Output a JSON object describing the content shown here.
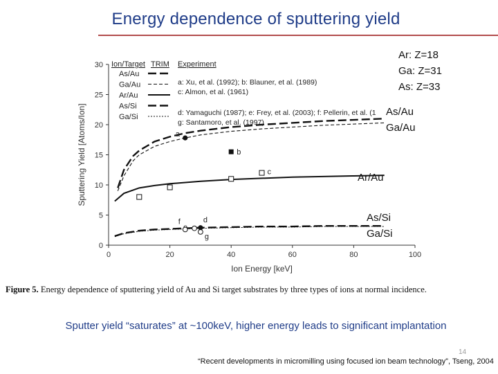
{
  "slide": {
    "title": "Energy dependence of sputtering yield",
    "labels_right": {
      "ions": "Ar: Z=18\nGa: Z=31\nAs: Z=33",
      "as_ga_au": "As/Au\nGa/Au",
      "ar_au": "Ar/Au",
      "as_ga_si": "As/Si\nGa/Si"
    },
    "caption_bold": "Figure 5.",
    "caption_text": " Energy dependence of sputtering yield of Au and Si target substrates by three types of ions at normal incidence.",
    "note": "Sputter yield “saturates” at ~100keV, higher energy leads to significant implantation",
    "reference": "“Recent developments in micromilling using focused ion beam technology”, Tseng, 2004",
    "page_number": "14"
  },
  "chart_data": {
    "type": "line",
    "xlabel": "Ion Energy [keV]",
    "ylabel": "Sputtering Yield [Atoms/Ion]",
    "xlim": [
      0,
      100
    ],
    "ylim": [
      0,
      30
    ],
    "xticks": [
      0,
      20,
      40,
      60,
      80,
      100
    ],
    "yticks": [
      0,
      5,
      10,
      15,
      20,
      25,
      30
    ],
    "legend_headers": [
      "Ion/Target",
      "TRIM",
      "Experiment"
    ],
    "series": [
      {
        "name": "As/Au",
        "style": "long-dash",
        "x": [
          3,
          5,
          8,
          10,
          15,
          20,
          25,
          30,
          40,
          50,
          60,
          70,
          80,
          90
        ],
        "y": [
          9.5,
          12.5,
          14.8,
          15.7,
          17.2,
          18,
          18.6,
          19,
          19.6,
          20,
          20.3,
          20.6,
          20.8,
          21.0
        ]
      },
      {
        "name": "Ga/Au",
        "style": "short-dash",
        "x": [
          3,
          5,
          8,
          10,
          15,
          20,
          25,
          30,
          40,
          50,
          60,
          70,
          80,
          90
        ],
        "y": [
          9.0,
          11.5,
          14.0,
          15.0,
          16.4,
          17.2,
          17.8,
          18.3,
          18.9,
          19.3,
          19.6,
          19.9,
          20.1,
          20.3
        ]
      },
      {
        "name": "Ar/Au",
        "style": "solid",
        "x": [
          2,
          5,
          10,
          15,
          20,
          30,
          40,
          50,
          60,
          70,
          80,
          90
        ],
        "y": [
          7.3,
          8.6,
          9.5,
          9.9,
          10.2,
          10.6,
          10.9,
          11.1,
          11.3,
          11.4,
          11.5,
          11.6
        ]
      },
      {
        "name": "As/Si",
        "style": "long-dash",
        "x": [
          2,
          5,
          10,
          15,
          20,
          30,
          40,
          50,
          60,
          70,
          80,
          90
        ],
        "y": [
          1.5,
          2.0,
          2.4,
          2.6,
          2.7,
          2.9,
          3.0,
          3.1,
          3.1,
          3.2,
          3.2,
          3.2
        ]
      },
      {
        "name": "Ga/Si",
        "style": "dotted",
        "x": [
          2,
          5,
          10,
          15,
          20,
          30,
          40,
          50,
          60,
          70,
          80,
          90
        ],
        "y": [
          1.4,
          1.9,
          2.3,
          2.5,
          2.6,
          2.8,
          2.9,
          3.0,
          3.0,
          3.1,
          3.1,
          3.1
        ]
      }
    ],
    "experiments": [
      {
        "label": "a: Xu, et al. (1992); b: Blauner, et al. (1989)"
      },
      {
        "label": "c: Almon, et al. (1961)"
      },
      {
        "label": "d: Yamaguchi (1987); e: Frey, et al. (2003); f: Pellerin, et al. (1"
      },
      {
        "label": "g: Santamoro, et al. (1997)"
      }
    ],
    "points": [
      {
        "label": "a",
        "x": 25,
        "y": 17.8,
        "marker": "filled-circle"
      },
      {
        "label": "b",
        "x": 40,
        "y": 15.5,
        "marker": "filled-square"
      },
      {
        "label": "c",
        "x": 50,
        "y": 12.0,
        "marker": "open-square"
      },
      {
        "label": "",
        "x": 40,
        "y": 11.0,
        "marker": "open-square"
      },
      {
        "label": "",
        "x": 20,
        "y": 9.6,
        "marker": "open-square"
      },
      {
        "label": "",
        "x": 10,
        "y": 8.0,
        "marker": "open-square"
      },
      {
        "label": "d",
        "x": 30,
        "y": 2.9,
        "marker": "filled-circle"
      },
      {
        "label": "e",
        "x": 28,
        "y": 2.8,
        "marker": "open-circle"
      },
      {
        "label": "f",
        "x": 25,
        "y": 2.6,
        "marker": "open-circle"
      },
      {
        "label": "g",
        "x": 30,
        "y": 2.2,
        "marker": "open-circle"
      }
    ]
  }
}
